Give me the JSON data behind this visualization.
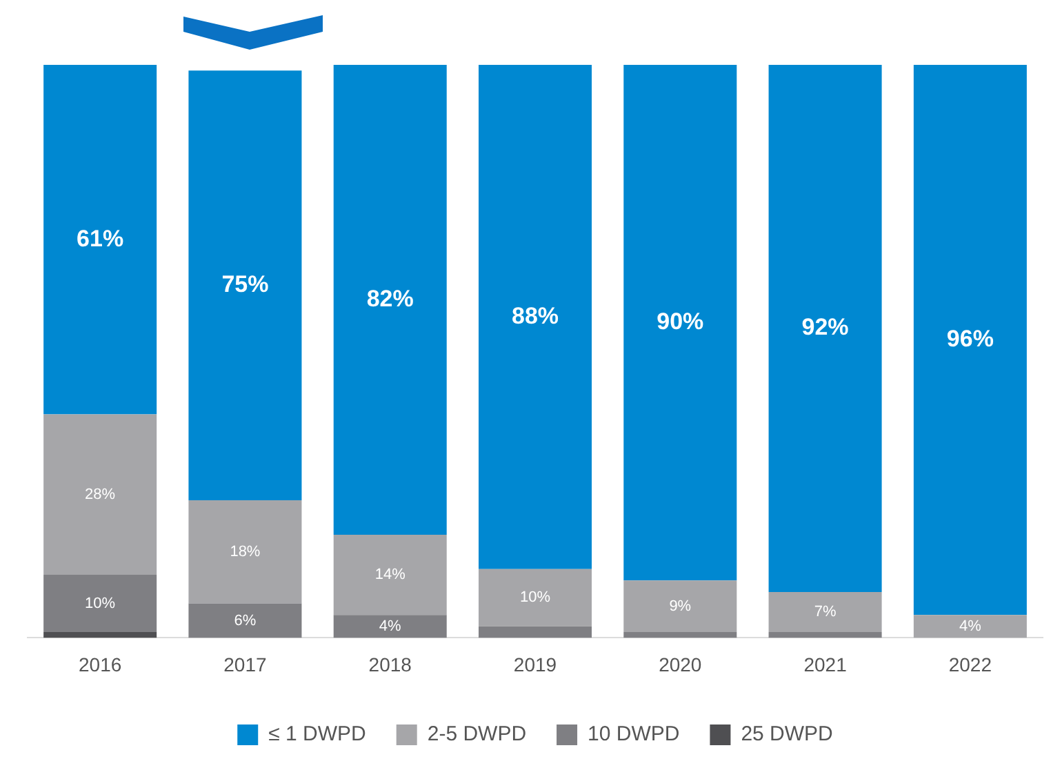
{
  "chart_data": {
    "type": "bar",
    "stacked": true,
    "categories": [
      "2016",
      "2017",
      "2018",
      "2019",
      "2020",
      "2021",
      "2022"
    ],
    "series": [
      {
        "name": "25 DWPD",
        "color": "#4f4f52",
        "values": [
          1,
          0,
          0,
          0,
          0,
          0,
          0
        ],
        "value_labels": [
          null,
          null,
          null,
          null,
          null,
          null,
          null
        ]
      },
      {
        "name": "10 DWPD",
        "color": "#7f7f83",
        "values": [
          10,
          6,
          4,
          2,
          1,
          1,
          0
        ],
        "value_labels": [
          "10%",
          "6%",
          "4%",
          null,
          null,
          null,
          null
        ]
      },
      {
        "name": "2-5 DWPD",
        "color": "#a6a6a9",
        "values": [
          28,
          18,
          14,
          10,
          9,
          7,
          4
        ],
        "value_labels": [
          "28%",
          "18%",
          "14%",
          "10%",
          "9%",
          "7%",
          "4%"
        ]
      },
      {
        "name": "≤ 1 DWPD",
        "color": "#0088d1",
        "values": [
          61,
          75,
          82,
          88,
          90,
          92,
          96
        ],
        "value_labels": [
          "61%",
          "75%",
          "82%",
          "88%",
          "90%",
          "92%",
          "96%"
        ]
      }
    ],
    "ylim": [
      0,
      100
    ],
    "tick_labels": "x",
    "grid": false,
    "legend": "bottom"
  }
}
